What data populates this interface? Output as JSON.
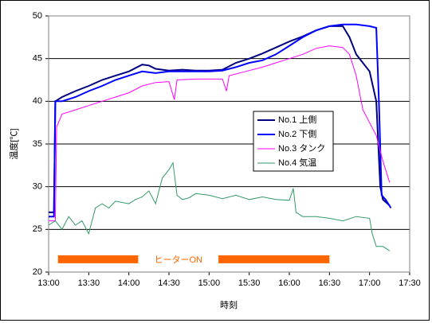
{
  "chart_data": {
    "type": "line",
    "y_label": "温度[℃]",
    "x_label": "時刻",
    "ylim": [
      20,
      50
    ],
    "yticks": [
      20,
      25,
      30,
      35,
      40,
      45,
      50
    ],
    "grid": true,
    "xlim": [
      "13:00",
      "17:30"
    ],
    "xticks": [
      "13:00",
      "13:30",
      "14:00",
      "14:30",
      "15:00",
      "15:30",
      "16:00",
      "16:30",
      "17:00",
      "17:30"
    ],
    "legend": "center",
    "series": [
      {
        "name": "No.1 上側",
        "color": "#000080",
        "x": [
          "13:00",
          "13:04",
          "13:05",
          "13:10",
          "13:20",
          "13:30",
          "13:40",
          "13:50",
          "14:00",
          "14:10",
          "14:15",
          "14:20",
          "14:30",
          "14:40",
          "14:50",
          "15:00",
          "15:10",
          "15:20",
          "15:30",
          "15:40",
          "15:50",
          "16:00",
          "16:10",
          "16:20",
          "16:30",
          "16:40",
          "16:45",
          "16:50",
          "17:00",
          "17:05",
          "17:08",
          "17:10",
          "17:15"
        ],
        "values": [
          27,
          27,
          40,
          40.5,
          41.2,
          41.8,
          42.5,
          43,
          43.5,
          44.3,
          44.2,
          43.8,
          43.6,
          43.7,
          43.6,
          43.6,
          43.7,
          44.5,
          45,
          45.6,
          46.3,
          47,
          47.6,
          48.3,
          48.8,
          48.8,
          47.5,
          45.5,
          43.5,
          40,
          30,
          28.5,
          27.8
        ]
      },
      {
        "name": "No.2 下側",
        "color": "#0000ff",
        "x": [
          "13:00",
          "13:04",
          "13:05",
          "13:10",
          "13:20",
          "13:30",
          "13:40",
          "13:50",
          "14:00",
          "14:10",
          "14:20",
          "14:30",
          "14:40",
          "14:50",
          "15:00",
          "15:10",
          "15:20",
          "15:30",
          "15:40",
          "15:50",
          "16:00",
          "16:10",
          "16:20",
          "16:30",
          "16:40",
          "16:50",
          "17:00",
          "17:05",
          "17:07",
          "17:09",
          "17:12",
          "17:16"
        ],
        "values": [
          26.5,
          26.5,
          40,
          40,
          40.5,
          41.2,
          41.8,
          42.5,
          43,
          43.5,
          43.3,
          43.5,
          43.5,
          43.5,
          43.5,
          43.6,
          44,
          44.5,
          44.8,
          45.5,
          46.5,
          47.5,
          48.3,
          48.8,
          49,
          49,
          48.8,
          48.6,
          40,
          29,
          28.5,
          27.5
        ]
      },
      {
        "name": "No.3 タンク",
        "color": "#ff00ff",
        "x": [
          "13:00",
          "13:05",
          "13:06",
          "13:10",
          "13:20",
          "13:30",
          "13:40",
          "13:50",
          "14:00",
          "14:10",
          "14:20",
          "14:30",
          "14:34",
          "14:36",
          "14:50",
          "15:00",
          "15:10",
          "15:13",
          "15:15",
          "15:30",
          "15:40",
          "15:50",
          "16:00",
          "16:10",
          "16:20",
          "16:30",
          "16:40",
          "16:45",
          "16:50",
          "16:55",
          "17:00",
          "17:05",
          "17:10",
          "17:15"
        ],
        "values": [
          26,
          26,
          37,
          38.5,
          39,
          39.5,
          40,
          40.5,
          41,
          41.8,
          42.2,
          42.3,
          40.2,
          42.5,
          42.6,
          42.6,
          42.6,
          41.2,
          43,
          43.6,
          44,
          44.5,
          45,
          45.5,
          46.2,
          46.5,
          46.3,
          45.5,
          43,
          39,
          37.5,
          36,
          33,
          30.5
        ]
      },
      {
        "name": "No.4 気温",
        "color": "#339966",
        "x": [
          "13:00",
          "13:05",
          "13:10",
          "13:15",
          "13:20",
          "13:25",
          "13:30",
          "13:35",
          "13:40",
          "13:45",
          "13:50",
          "14:00",
          "14:05",
          "14:10",
          "14:15",
          "14:20",
          "14:25",
          "14:30",
          "14:33",
          "14:36",
          "14:40",
          "14:45",
          "14:50",
          "15:00",
          "15:10",
          "15:20",
          "15:30",
          "15:40",
          "15:50",
          "16:00",
          "16:03",
          "16:05",
          "16:10",
          "16:20",
          "16:30",
          "16:40",
          "16:50",
          "17:00",
          "17:02",
          "17:05",
          "17:10",
          "17:15"
        ],
        "values": [
          25.5,
          26,
          25,
          26.5,
          25.5,
          26,
          24.5,
          27.5,
          28,
          27.5,
          28.3,
          28,
          28.5,
          28.8,
          29.5,
          28,
          31,
          32,
          32.8,
          29,
          28.5,
          28.7,
          29.2,
          29,
          28.6,
          29,
          28.5,
          28.8,
          28.5,
          28.4,
          29.8,
          27,
          26.5,
          26.5,
          26.3,
          26,
          26.5,
          26.3,
          24.5,
          23,
          23,
          22.5
        ]
      }
    ],
    "heater": {
      "label": "ヒーターON",
      "color": "#ff6600",
      "y": 21.5,
      "periods": [
        [
          "13:07",
          "14:07"
        ],
        [
          "15:07",
          "16:30"
        ]
      ]
    }
  }
}
